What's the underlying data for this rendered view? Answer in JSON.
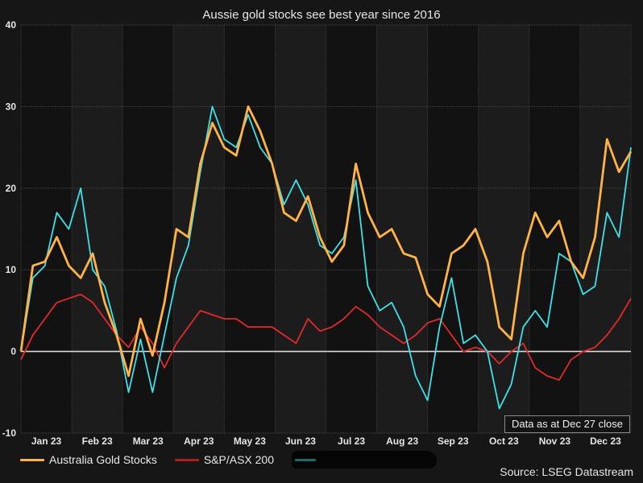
{
  "chart_data": {
    "type": "line",
    "title": "Aussie gold stocks see best year since 2016",
    "xlabel": "",
    "ylabel": "",
    "ylim": [
      -10,
      40
    ],
    "yticks": [
      "40",
      "30",
      "20",
      "10",
      "0",
      "-10"
    ],
    "ytick_values": [
      40,
      30,
      20,
      10,
      0,
      -10
    ],
    "months": [
      "Jan 23",
      "Feb 23",
      "Mar 23",
      "Apr 23",
      "May 23",
      "Jun 23",
      "Jul 23",
      "Aug 23",
      "Sep 23",
      "Oct 23",
      "Nov 23",
      "Dec 23"
    ],
    "grid": true,
    "zero_line": true,
    "x_unit": "week index (0 = start of Jan 2023)",
    "x": [
      0,
      1,
      2,
      3,
      4,
      5,
      6,
      7,
      8,
      9,
      10,
      11,
      12,
      13,
      14,
      15,
      16,
      17,
      18,
      19,
      20,
      21,
      22,
      23,
      24,
      25,
      26,
      27,
      28,
      29,
      30,
      31,
      32,
      33,
      34,
      35,
      36,
      37,
      38,
      39,
      40,
      41,
      42,
      43,
      44,
      45,
      46,
      47,
      48,
      49,
      50,
      51
    ],
    "series": [
      {
        "name": "Australia Gold Stocks",
        "color": "#ffb347",
        "values": [
          0,
          10.5,
          11,
          14,
          10.5,
          9,
          12,
          6,
          2,
          -3,
          4,
          -0.5,
          6,
          15,
          14,
          23,
          28,
          25,
          24,
          30,
          27,
          23,
          17,
          16,
          19,
          14,
          11,
          13,
          23,
          17,
          14,
          15,
          12,
          11.5,
          7,
          5.5,
          12,
          13,
          15,
          11,
          3,
          1.5,
          12,
          17,
          14,
          16,
          11,
          9,
          14,
          26,
          22,
          24.5
        ]
      },
      {
        "name": "S&P/ASX 200",
        "color": "#e02a2a",
        "values": [
          -1,
          2,
          4,
          6,
          6.5,
          7,
          6,
          4,
          2,
          0.5,
          3,
          1,
          -2,
          1,
          3,
          5,
          4.5,
          4,
          4,
          3,
          3,
          3,
          2,
          1,
          4,
          2.5,
          3,
          4,
          5.5,
          4.5,
          3,
          2,
          1,
          2,
          3.5,
          4,
          2,
          0,
          0.5,
          0,
          -1.5,
          0,
          1,
          -2,
          -3,
          -3.5,
          -1,
          0,
          0.5,
          2,
          4,
          6.5
        ]
      },
      {
        "name": "",
        "color": "#3fe0e8",
        "values": [
          0,
          9,
          10.5,
          17,
          15,
          20,
          10,
          8,
          2.5,
          -5,
          1.5,
          -5,
          2,
          9,
          13,
          22,
          30,
          26,
          25,
          29,
          25,
          23,
          18,
          21,
          18,
          13,
          12,
          14,
          21,
          8,
          5,
          6,
          3,
          -3,
          -6,
          3,
          9,
          1,
          2,
          0,
          -7,
          -4,
          3,
          5,
          3,
          12,
          11,
          7,
          8,
          17,
          14,
          25
        ]
      }
    ]
  },
  "legend": {
    "items": [
      {
        "label": "Australia Gold Stocks",
        "color": "#ffb347"
      },
      {
        "label": "S&P/ASX 200",
        "color": "#e02a2a"
      }
    ],
    "redacted_color": "#3fe0e8"
  },
  "annotation": "Data as at Dec 27 close",
  "source": "Source: LSEG Datastream"
}
